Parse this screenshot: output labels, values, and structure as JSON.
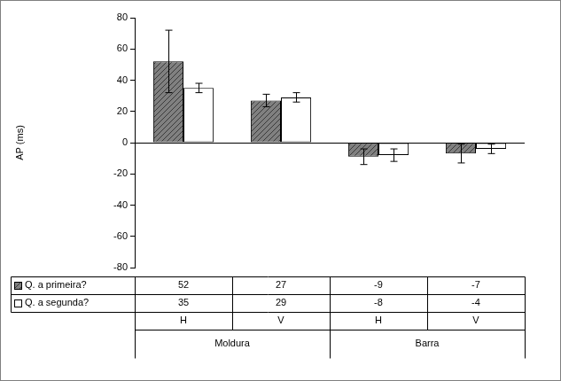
{
  "chart_data": {
    "type": "bar",
    "y_label": "AP (ms)",
    "categories": [
      "H",
      "V",
      "H",
      "V"
    ],
    "groups": [
      "Moldura",
      "Moldura",
      "Barra",
      "Barra"
    ],
    "series": [
      {
        "name": "Q. a primeira?",
        "color": "#808080",
        "values": [
          52,
          27,
          -9,
          -7
        ],
        "errors": [
          20,
          4,
          5,
          6
        ]
      },
      {
        "name": "Q. a segunda?",
        "color": "#ffffff",
        "values": [
          35,
          29,
          -8,
          -4
        ],
        "errors": [
          3,
          3,
          4,
          3
        ]
      }
    ],
    "ylim": [
      -80,
      80
    ],
    "yticks": [
      -80,
      -60,
      -40,
      -20,
      0,
      20,
      40,
      60,
      80
    ],
    "grid": false
  }
}
